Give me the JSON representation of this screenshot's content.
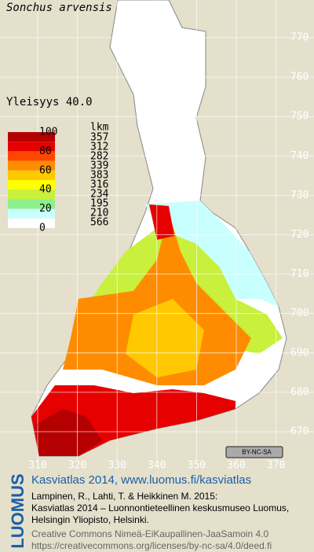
{
  "title": "Sonchus arvensis",
  "frequency_label": "Yleisyys 40.0",
  "legend": {
    "scale_labels": [
      100,
      80,
      60,
      40,
      20,
      0
    ],
    "count_header": "lkm",
    "classes": [
      {
        "color": "#b40000",
        "count": 357
      },
      {
        "color": "#e60000",
        "count": 312
      },
      {
        "color": "#ff4600",
        "count": 282
      },
      {
        "color": "#ff8c00",
        "count": 339
      },
      {
        "color": "#ffc800",
        "count": 383
      },
      {
        "color": "#ffff00",
        "count": 316
      },
      {
        "color": "#c8f03c",
        "count": 234
      },
      {
        "color": "#8cf08c",
        "count": 195
      },
      {
        "color": "#c8ffff",
        "count": 210
      },
      {
        "color": "#ffffff",
        "count": 566
      }
    ]
  },
  "northing_labels": [
    770,
    760,
    750,
    740,
    730,
    720,
    710,
    700,
    690,
    680,
    670
  ],
  "easting_labels": [
    310,
    320,
    330,
    340,
    350,
    360,
    370
  ],
  "badge": "BY-NC-SA",
  "footer": {
    "brand": "LUOMUS",
    "link": "Kasviatlas 2014, www.luomus.fi/kasviatlas",
    "citation": [
      "Lampinen, R., Lahti, T. & Heikkinen M. 2015:",
      "Kasviatlas 2014 – Luonnontieteellinen keskusmuseo Luomus,",
      "Helsingin Yliopisto, Helsinki."
    ],
    "license": [
      "Creative Commons Nimeä-EiKaupallinen-JaaSamoin 4.0",
      "https://creativecommons.org/licenses/by-nc-sa/4.0/deed.fi"
    ]
  }
}
